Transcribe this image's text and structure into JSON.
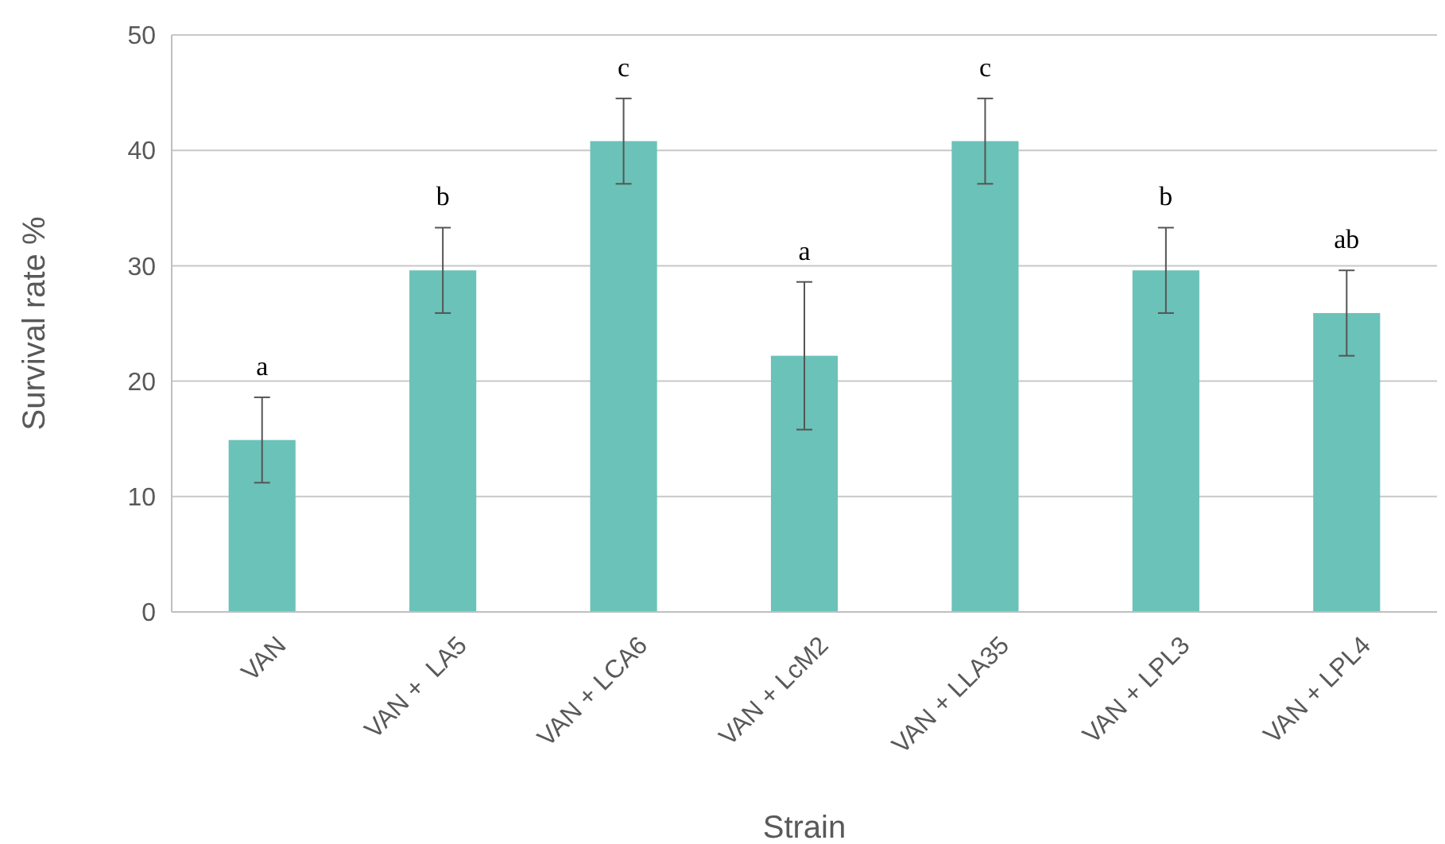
{
  "chart_data": {
    "type": "bar",
    "xlabel": "Strain",
    "ylabel": "Survival rate %",
    "categories": [
      "VAN",
      "VAN +  LA5",
      "VAN + LCA6",
      "VAN + LcM2",
      "VAN + LLA35",
      "VAN + LPL3",
      "VAN + LPL4"
    ],
    "values": [
      14.9,
      29.6,
      40.8,
      22.2,
      40.8,
      29.6,
      25.9
    ],
    "errors": [
      3.7,
      3.7,
      3.7,
      6.4,
      3.7,
      3.7,
      3.7
    ],
    "color": "#6bc2b8",
    "ylim": [
      0,
      50
    ],
    "yticks": [
      0,
      10,
      20,
      30,
      40,
      50
    ],
    "grid": "y",
    "annotations": [
      "a",
      "b",
      "c",
      "a",
      "c",
      "b",
      "ab"
    ]
  }
}
